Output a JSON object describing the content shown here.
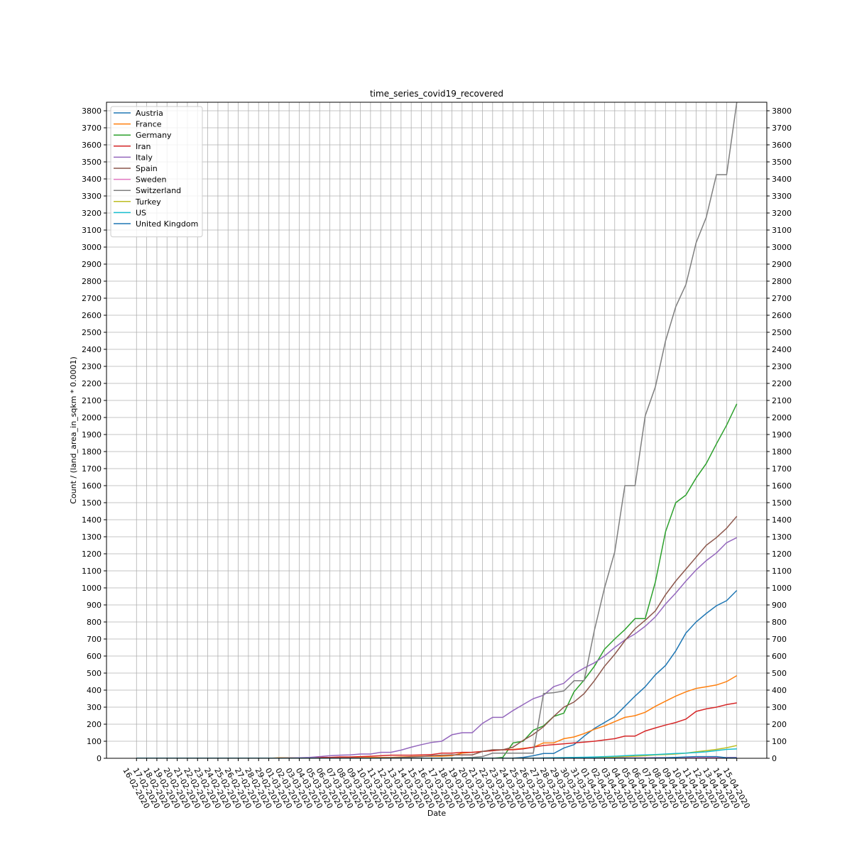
{
  "chart_data": {
    "type": "line",
    "title": "time_series_covid19_recovered",
    "x_label": "Date",
    "y_label": "Count /  (land_area_in_sqkm * 0.0001)",
    "categories": [
      "16-02-2020",
      "17-02-2020",
      "18-02-2020",
      "19-02-2020",
      "20-02-2020",
      "21-02-2020",
      "22-02-2020",
      "23-02-2020",
      "24-02-2020",
      "25-02-2020",
      "26-02-2020",
      "27-02-2020",
      "28-02-2020",
      "29-02-2020",
      "01-03-2020",
      "02-03-2020",
      "03-03-2020",
      "04-03-2020",
      "05-03-2020",
      "06-03-2020",
      "07-03-2020",
      "08-03-2020",
      "09-03-2020",
      "10-03-2020",
      "11-03-2020",
      "12-03-2020",
      "13-03-2020",
      "14-03-2020",
      "15-03-2020",
      "16-03-2020",
      "17-03-2020",
      "18-03-2020",
      "19-03-2020",
      "20-03-2020",
      "21-03-2020",
      "22-03-2020",
      "23-03-2020",
      "24-03-2020",
      "25-03-2020",
      "26-03-2020",
      "27-03-2020",
      "28-03-2020",
      "29-03-2020",
      "30-03-2020",
      "31-03-2020",
      "01-04-2020",
      "02-04-2020",
      "03-04-2020",
      "04-04-2020",
      "05-04-2020",
      "06-04-2020",
      "07-04-2020",
      "08-04-2020",
      "09-04-2020",
      "10-04-2020",
      "11-04-2020",
      "12-04-2020",
      "13-04-2020",
      "14-04-2020",
      "15-04-2020"
    ],
    "series": [
      {
        "name": "Austria",
        "color": "#1f77b4",
        "values": [
          0,
          0,
          0,
          0,
          0,
          0,
          0,
          0,
          0,
          0,
          0,
          0,
          0,
          0,
          0,
          0,
          0,
          0,
          0,
          0,
          0,
          0,
          0,
          0,
          0,
          0,
          0,
          0,
          0,
          0,
          1,
          1,
          1,
          1,
          1,
          1,
          1,
          1,
          5,
          15,
          28,
          28,
          60,
          80,
          130,
          175,
          210,
          245,
          305,
          365,
          420,
          490,
          545,
          630,
          735,
          800,
          850,
          895,
          925,
          985
        ]
      },
      {
        "name": "France",
        "color": "#ff7f0e",
        "values": [
          0,
          0,
          0,
          0,
          0,
          0,
          0,
          0,
          0,
          0,
          0,
          0,
          0,
          0,
          3,
          3,
          3,
          3,
          3,
          3,
          4,
          4,
          4,
          5,
          5,
          5,
          8,
          10,
          12,
          12,
          12,
          15,
          30,
          35,
          40,
          45,
          50,
          52,
          58,
          65,
          90,
          90,
          115,
          125,
          145,
          170,
          190,
          215,
          240,
          250,
          270,
          305,
          335,
          365,
          390,
          410,
          420,
          430,
          450,
          485
        ]
      },
      {
        "name": "Germany",
        "color": "#2ca02c",
        "values": [
          0,
          0,
          0,
          0,
          0,
          0,
          0,
          0,
          0,
          0,
          0,
          0,
          0,
          0,
          0,
          0,
          0,
          0,
          0,
          0,
          0,
          0,
          0,
          0,
          0,
          0,
          0,
          0,
          0,
          0,
          0,
          0,
          0,
          0,
          0,
          0,
          5,
          90,
          100,
          165,
          190,
          245,
          265,
          390,
          460,
          540,
          640,
          700,
          755,
          820,
          820,
          1035,
          1330,
          1500,
          1545,
          1645,
          1730,
          1845,
          1955,
          2080
        ]
      },
      {
        "name": "Iran",
        "color": "#d62728",
        "values": [
          0,
          0,
          0,
          0,
          0,
          0,
          0,
          0,
          0,
          0,
          0,
          0,
          0,
          0,
          0,
          0,
          0,
          0,
          5,
          5,
          8,
          8,
          10,
          12,
          15,
          18,
          18,
          18,
          20,
          22,
          30,
          30,
          35,
          35,
          40,
          45,
          50,
          50,
          55,
          65,
          75,
          80,
          85,
          90,
          95,
          100,
          108,
          115,
          130,
          130,
          160,
          178,
          195,
          210,
          230,
          275,
          290,
          300,
          315,
          325
        ]
      },
      {
        "name": "Italy",
        "color": "#9467bd",
        "values": [
          0,
          0,
          0,
          0,
          0,
          0,
          0,
          0,
          0,
          0,
          0,
          0,
          0,
          0,
          1,
          2,
          3,
          5,
          10,
          15,
          18,
          20,
          25,
          25,
          35,
          35,
          48,
          65,
          80,
          93,
          100,
          138,
          150,
          150,
          205,
          240,
          240,
          280,
          315,
          350,
          370,
          420,
          440,
          495,
          530,
          560,
          600,
          650,
          695,
          730,
          775,
          830,
          905,
          970,
          1040,
          1105,
          1160,
          1205,
          1265,
          1295
        ]
      },
      {
        "name": "Spain",
        "color": "#8c564b",
        "values": [
          0,
          0,
          0,
          0,
          0,
          0,
          0,
          0,
          0,
          0,
          0,
          0,
          0,
          0,
          0,
          0,
          0,
          0,
          0,
          0,
          0,
          0,
          0,
          1,
          2,
          3,
          5,
          8,
          10,
          15,
          18,
          20,
          20,
          20,
          40,
          50,
          50,
          65,
          105,
          140,
          185,
          245,
          300,
          330,
          380,
          455,
          540,
          610,
          690,
          760,
          810,
          865,
          960,
          1040,
          1110,
          1180,
          1250,
          1295,
          1350,
          1420
        ]
      },
      {
        "name": "Sweden",
        "color": "#e377c2",
        "values": [
          0,
          0,
          0,
          0,
          0,
          0,
          0,
          0,
          0,
          0,
          0,
          0,
          0,
          0,
          0,
          0,
          0,
          0,
          0,
          0,
          0,
          0,
          0,
          0,
          0,
          0,
          0,
          0,
          0,
          0,
          0,
          0,
          0,
          0,
          0,
          0,
          0,
          0,
          0,
          0,
          1,
          1,
          1,
          2,
          2,
          2,
          2,
          3,
          3,
          3,
          3,
          4,
          4,
          4,
          4,
          5,
          5,
          5,
          5,
          5
        ]
      },
      {
        "name": "Switzerland",
        "color": "#7f7f7f",
        "values": [
          0,
          0,
          0,
          0,
          0,
          0,
          0,
          0,
          0,
          0,
          0,
          0,
          0,
          0,
          0,
          0,
          0,
          0,
          0,
          0,
          0,
          0,
          0,
          0,
          0,
          0,
          0,
          0,
          0,
          0,
          1,
          2,
          3,
          5,
          10,
          30,
          30,
          30,
          30,
          30,
          380,
          385,
          395,
          455,
          455,
          750,
          1000,
          1210,
          1600,
          1600,
          2010,
          2180,
          2450,
          2650,
          2780,
          3025,
          3175,
          3425,
          3425,
          3850
        ]
      },
      {
        "name": "Turkey",
        "color": "#bcbd22",
        "values": [
          0,
          0,
          0,
          0,
          0,
          0,
          0,
          0,
          0,
          0,
          0,
          0,
          0,
          0,
          0,
          0,
          0,
          0,
          0,
          0,
          0,
          0,
          0,
          0,
          0,
          0,
          0,
          0,
          0,
          0,
          0,
          0,
          0,
          0,
          0,
          0,
          0,
          0,
          0,
          0,
          0,
          0,
          0,
          1,
          2,
          3,
          5,
          8,
          10,
          12,
          15,
          20,
          22,
          25,
          30,
          38,
          45,
          52,
          62,
          75
        ]
      },
      {
        "name": "US",
        "color": "#17becf",
        "values": [
          0,
          0,
          0,
          0,
          0,
          0,
          0,
          0,
          0,
          0,
          0,
          0,
          0,
          0,
          0,
          0,
          0,
          0,
          0,
          0,
          0,
          0,
          0,
          0,
          0,
          0,
          0,
          0,
          0,
          0,
          0,
          0,
          0,
          0,
          0,
          0,
          0,
          0,
          0,
          0,
          2,
          3,
          4,
          5,
          6,
          8,
          10,
          12,
          15,
          18,
          20,
          22,
          25,
          28,
          30,
          34,
          38,
          45,
          52,
          55
        ]
      },
      {
        "name": "United Kingdom",
        "color": "#1f77b4",
        "values": [
          0,
          0,
          0,
          0,
          0,
          0,
          0,
          0,
          0,
          0,
          0,
          0,
          0,
          0,
          0,
          0,
          0,
          0,
          0,
          0,
          0,
          0,
          0,
          0,
          0,
          0,
          0,
          0,
          0,
          0,
          0,
          0,
          0,
          0,
          0,
          0,
          0,
          0,
          0,
          0,
          1,
          1,
          1,
          1,
          1,
          1,
          1,
          1,
          1,
          1,
          1,
          2,
          3,
          5,
          8,
          10,
          10,
          10,
          3,
          3
        ]
      }
    ],
    "ylim": [
      0,
      3850
    ],
    "yticks": [
      0,
      100,
      200,
      300,
      400,
      500,
      600,
      700,
      800,
      900,
      1000,
      1100,
      1200,
      1300,
      1400,
      1500,
      1600,
      1700,
      1800,
      1900,
      2000,
      2100,
      2200,
      2300,
      2400,
      2500,
      2600,
      2700,
      2800,
      2900,
      3000,
      3100,
      3200,
      3300,
      3400,
      3500,
      3600,
      3700,
      3800
    ],
    "grid": true,
    "legend": "upper left"
  }
}
